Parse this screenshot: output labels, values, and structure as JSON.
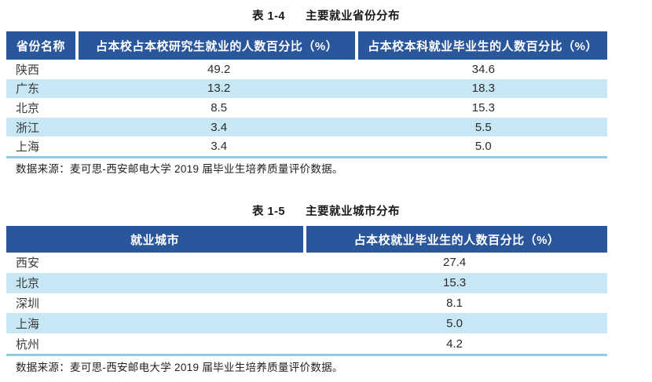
{
  "colors": {
    "header_bg": "#2A569B",
    "header_text": "#ffffff",
    "row_stripe": "#C7E7F4",
    "table_bottom_border": "#90CBE6",
    "body_text": "#333333"
  },
  "table1": {
    "title_label": "表 1-4",
    "title_text": "主要就业省份分布",
    "columns": [
      "省份名称",
      "占本校占本校研究生就业的人数百分比（%）",
      "占本校本科就业毕业生的人数百分比（%）"
    ],
    "rows": [
      {
        "name": "陕西",
        "grad_pct": "49.2",
        "undergrad_pct": "34.6"
      },
      {
        "name": "广东",
        "grad_pct": "13.2",
        "undergrad_pct": "18.3"
      },
      {
        "name": "北京",
        "grad_pct": "8.5",
        "undergrad_pct": "15.3"
      },
      {
        "name": "浙江",
        "grad_pct": "3.4",
        "undergrad_pct": "5.5"
      },
      {
        "name": "上海",
        "grad_pct": "3.4",
        "undergrad_pct": "5.0"
      }
    ],
    "source": "数据来源：麦可思-西安邮电大学 2019 届毕业生培养质量评价数据。"
  },
  "table2": {
    "title_label": "表 1-5",
    "title_text": "主要就业城市分布",
    "columns": [
      "就业城市",
      "占本校就业毕业生的人数百分比（%）"
    ],
    "rows": [
      {
        "name": "西安",
        "pct": "27.4"
      },
      {
        "name": "北京",
        "pct": "15.3"
      },
      {
        "name": "深圳",
        "pct": "8.1"
      },
      {
        "name": "上海",
        "pct": "5.0"
      },
      {
        "name": "杭州",
        "pct": "4.2"
      }
    ],
    "source": "数据来源：麦可思-西安邮电大学 2019 届毕业生培养质量评价数据。"
  }
}
